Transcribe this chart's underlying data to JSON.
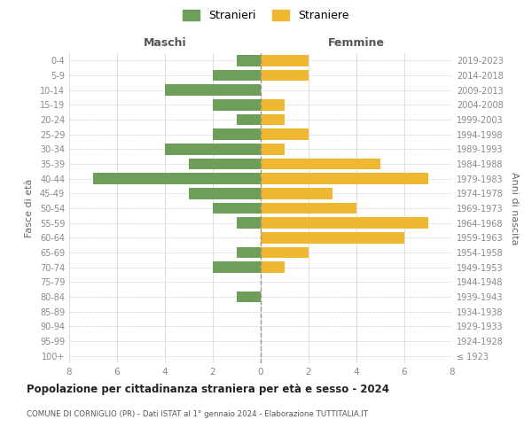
{
  "age_groups": [
    "100+",
    "95-99",
    "90-94",
    "85-89",
    "80-84",
    "75-79",
    "70-74",
    "65-69",
    "60-64",
    "55-59",
    "50-54",
    "45-49",
    "40-44",
    "35-39",
    "30-34",
    "25-29",
    "20-24",
    "15-19",
    "10-14",
    "5-9",
    "0-4"
  ],
  "birth_years": [
    "≤ 1923",
    "1924-1928",
    "1929-1933",
    "1934-1938",
    "1939-1943",
    "1944-1948",
    "1949-1953",
    "1954-1958",
    "1959-1963",
    "1964-1968",
    "1969-1973",
    "1974-1978",
    "1979-1983",
    "1984-1988",
    "1989-1993",
    "1994-1998",
    "1999-2003",
    "2004-2008",
    "2009-2013",
    "2014-2018",
    "2019-2023"
  ],
  "maschi": [
    0,
    0,
    0,
    0,
    1,
    0,
    2,
    1,
    0,
    1,
    2,
    3,
    7,
    3,
    4,
    2,
    1,
    2,
    4,
    2,
    1
  ],
  "femmine": [
    0,
    0,
    0,
    0,
    0,
    0,
    1,
    2,
    6,
    7,
    4,
    3,
    7,
    5,
    1,
    2,
    1,
    1,
    0,
    2,
    2
  ],
  "maschi_color": "#6d9e5a",
  "femmine_color": "#f0b830",
  "title": "Popolazione per cittadinanza straniera per età e sesso - 2024",
  "subtitle": "COMUNE DI CORNIGLIO (PR) - Dati ISTAT al 1° gennaio 2024 - Elaborazione TUTTITALIA.IT",
  "xlabel_left": "Maschi",
  "xlabel_right": "Femmine",
  "ylabel_left": "Fasce di età",
  "ylabel_right": "Anni di nascita",
  "xlim": 8,
  "legend_stranieri": "Stranieri",
  "legend_straniere": "Straniere",
  "background_color": "#ffffff",
  "grid_color": "#d0d0d0"
}
